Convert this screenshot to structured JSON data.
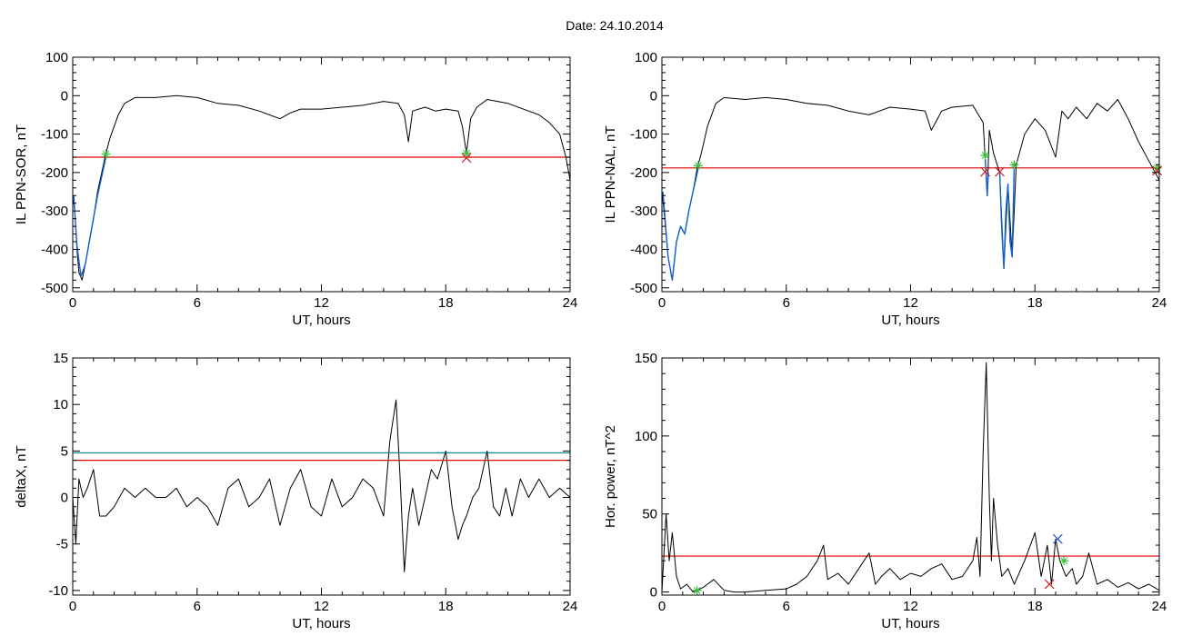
{
  "date_label": "Date:  24.10.2014",
  "colors": {
    "trace": "#000000",
    "threshold_red": "#e00000",
    "threshold_cyan": "#008a9a",
    "phase_blue": "#1560d0",
    "marker_green": "#33bb33",
    "marker_red": "#cc2222",
    "marker_blue": "#2255dd"
  },
  "chart_data": [
    {
      "id": "il_sor",
      "type": "line",
      "xlabel": "UT, hours",
      "ylabel": "IL PPN-SOR, nT",
      "xlim": [
        0,
        24
      ],
      "ylim": [
        -510,
        100
      ],
      "xticks": [
        0,
        6,
        12,
        18,
        24
      ],
      "yticks": [
        100,
        0,
        -100,
        -200,
        -300,
        -400,
        -500
      ],
      "series": [
        {
          "x": [
            0,
            0.1,
            0.2,
            0.3,
            0.45,
            0.6,
            0.8,
            1.0,
            1.2,
            1.4,
            1.6,
            1.8,
            2.0,
            2.2,
            2.5,
            3.0,
            4.0,
            5.0,
            6.0,
            7.0,
            8.0,
            9.0,
            10.0,
            10.5,
            11.0,
            12.0,
            13.0,
            14.0,
            15.0,
            15.7,
            16.0,
            16.2,
            16.4,
            17.0,
            17.5,
            18.0,
            18.6,
            18.8,
            19.0,
            19.2,
            19.5,
            20.0,
            21.0,
            22.0,
            22.5,
            23.0,
            23.5,
            23.8,
            24.0
          ],
          "y": [
            -260,
            -300,
            -400,
            -460,
            -480,
            -440,
            -380,
            -320,
            -250,
            -200,
            -150,
            -110,
            -80,
            -50,
            -20,
            -5,
            -5,
            0,
            -5,
            -20,
            -25,
            -40,
            -60,
            -45,
            -35,
            -35,
            -30,
            -25,
            -15,
            -20,
            -50,
            -120,
            -40,
            -30,
            -40,
            -35,
            -40,
            -80,
            -150,
            -60,
            -30,
            -10,
            -20,
            -40,
            -50,
            -70,
            -100,
            -160,
            -220
          ]
        },
        {
          "x": [
            0.05,
            0.2,
            0.4,
            0.6,
            0.8,
            1.0,
            1.2,
            1.4,
            1.6
          ],
          "y": [
            -260,
            -390,
            -470,
            -440,
            -380,
            -320,
            -260,
            -210,
            -160
          ]
        }
      ],
      "thresholds": [
        -160
      ],
      "markers": [
        {
          "x": 1.6,
          "y": -152,
          "kind": "plus"
        },
        {
          "x": 19.0,
          "y": -150,
          "kind": "plus"
        },
        {
          "x": 19.0,
          "y": -162,
          "kind": "cross"
        }
      ]
    },
    {
      "id": "il_nal",
      "type": "line",
      "xlabel": "UT, hours",
      "ylabel": "IL PPN-NAL, nT",
      "xlim": [
        0,
        24
      ],
      "ylim": [
        -510,
        100
      ],
      "xticks": [
        0,
        6,
        12,
        18,
        24
      ],
      "yticks": [
        100,
        0,
        -100,
        -200,
        -300,
        -400,
        -500
      ],
      "series": [
        {
          "x": [
            0,
            0.1,
            0.3,
            0.5,
            0.7,
            0.9,
            1.1,
            1.3,
            1.5,
            1.7,
            1.9,
            2.2,
            2.6,
            3.0,
            4.0,
            5.0,
            6.0,
            7.0,
            8.0,
            9.0,
            10.0,
            10.5,
            11.0,
            12.0,
            12.7,
            13.0,
            13.5,
            14.0,
            15.0,
            15.5,
            15.7,
            15.8,
            16.0,
            16.3,
            16.5,
            16.7,
            16.9,
            17.1,
            17.5,
            18.0,
            18.5,
            19.0,
            19.3,
            19.6,
            20.0,
            20.5,
            21.0,
            21.5,
            22.0,
            22.5,
            23.0,
            23.5,
            24.0
          ],
          "y": [
            -250,
            -300,
            -420,
            -480,
            -380,
            -340,
            -360,
            -300,
            -250,
            -190,
            -150,
            -80,
            -20,
            -5,
            -10,
            -5,
            -10,
            -20,
            -25,
            -40,
            -50,
            -40,
            -30,
            -35,
            -40,
            -90,
            -40,
            -30,
            -25,
            -70,
            -260,
            -90,
            -150,
            -200,
            -450,
            -230,
            -420,
            -180,
            -100,
            -60,
            -90,
            -160,
            -40,
            -60,
            -30,
            -60,
            -20,
            -40,
            -10,
            -60,
            -120,
            -170,
            -220
          ]
        },
        {
          "x": [
            0.05,
            0.3,
            0.5,
            0.7,
            0.9,
            1.1,
            1.3,
            1.5,
            1.75
          ],
          "y": [
            -250,
            -420,
            -480,
            -380,
            -340,
            -360,
            -300,
            -250,
            -190
          ]
        },
        {
          "x": [
            15.6,
            15.7,
            15.75
          ],
          "y": [
            -160,
            -260,
            -200
          ]
        },
        {
          "x": [
            16.3,
            16.4,
            16.5,
            16.6,
            16.7,
            16.8,
            16.9,
            17.0
          ],
          "y": [
            -200,
            -350,
            -450,
            -300,
            -230,
            -380,
            -420,
            -180
          ]
        }
      ],
      "thresholds": [
        -188
      ],
      "markers": [
        {
          "x": 1.75,
          "y": -182,
          "kind": "plus"
        },
        {
          "x": 15.6,
          "y": -155,
          "kind": "plus"
        },
        {
          "x": 17.0,
          "y": -180,
          "kind": "plus"
        },
        {
          "x": 23.9,
          "y": -188,
          "kind": "plus"
        },
        {
          "x": 15.6,
          "y": -198,
          "kind": "cross"
        },
        {
          "x": 16.3,
          "y": -198,
          "kind": "cross"
        },
        {
          "x": 23.9,
          "y": -195,
          "kind": "cross"
        }
      ]
    },
    {
      "id": "deltax",
      "type": "line",
      "xlabel": "UT, hours",
      "ylabel": "deltaX, nT",
      "xlim": [
        0,
        24
      ],
      "ylim": [
        -10.5,
        15
      ],
      "xticks": [
        0,
        6,
        12,
        18,
        24
      ],
      "yticks": [
        15,
        10,
        5,
        0,
        -5,
        -10
      ],
      "series": [
        {
          "x": [
            0,
            0.15,
            0.3,
            0.5,
            0.7,
            1.0,
            1.3,
            1.6,
            2.0,
            2.5,
            3.0,
            3.5,
            4.0,
            4.5,
            5.0,
            5.5,
            6.0,
            6.5,
            7.0,
            7.5,
            8.0,
            8.5,
            9.0,
            9.5,
            10.0,
            10.5,
            11.0,
            11.5,
            12.0,
            12.5,
            13.0,
            13.5,
            14.0,
            14.5,
            15.0,
            15.3,
            15.6,
            15.8,
            16.0,
            16.2,
            16.4,
            16.7,
            17.0,
            17.3,
            17.6,
            18.0,
            18.3,
            18.6,
            18.8,
            19.0,
            19.3,
            19.6,
            20.0,
            20.3,
            20.6,
            20.9,
            21.2,
            21.6,
            22.0,
            22.5,
            23.0,
            23.5,
            24.0
          ],
          "y": [
            0,
            -5,
            2,
            0,
            1,
            3,
            -2,
            -2,
            -1,
            1,
            0,
            1,
            0,
            0,
            1,
            -1,
            0,
            -1,
            -3,
            1,
            2,
            -1,
            0,
            2,
            -3,
            1,
            3,
            -1,
            -2,
            2,
            -1,
            0,
            2,
            1,
            -2,
            6,
            10.5,
            2,
            -8,
            -2,
            1,
            -3,
            0,
            3,
            2,
            5,
            -1,
            -4.5,
            -3,
            -2,
            0,
            1,
            5,
            -1,
            -2,
            1,
            -2,
            2,
            0,
            2,
            0,
            1,
            0
          ]
        }
      ],
      "thresholds": [
        4,
        4.8
      ]
    },
    {
      "id": "horpower",
      "type": "line",
      "xlabel": "UT, hours",
      "ylabel": "Hor. power, nT^2",
      "xlim": [
        0,
        24
      ],
      "ylim": [
        -2,
        150
      ],
      "xticks": [
        0,
        6,
        12,
        18,
        24
      ],
      "yticks": [
        150,
        100,
        50,
        0
      ],
      "series": [
        {
          "x": [
            0,
            0.1,
            0.2,
            0.35,
            0.5,
            0.7,
            0.9,
            1.2,
            1.5,
            2.0,
            2.5,
            3.0,
            3.5,
            4.0,
            5.0,
            6.0,
            6.5,
            7.0,
            7.5,
            7.8,
            8.0,
            8.5,
            9.0,
            9.5,
            10.0,
            10.3,
            10.6,
            11.0,
            11.5,
            12.0,
            12.5,
            13.0,
            13.5,
            14.0,
            14.5,
            15.0,
            15.2,
            15.35,
            15.5,
            15.65,
            15.8,
            15.9,
            16.0,
            16.2,
            16.4,
            16.7,
            17.0,
            17.5,
            18.0,
            18.3,
            18.6,
            18.8,
            19.0,
            19.2,
            19.5,
            19.8,
            20.0,
            20.3,
            20.6,
            21.0,
            21.5,
            22.0,
            22.5,
            23.0,
            23.5,
            24.0
          ],
          "y": [
            0,
            25,
            50,
            20,
            38,
            10,
            2,
            5,
            0,
            3,
            8,
            1,
            0,
            0,
            1,
            2,
            5,
            10,
            20,
            30,
            8,
            12,
            5,
            15,
            25,
            5,
            10,
            15,
            8,
            12,
            10,
            15,
            18,
            8,
            10,
            20,
            35,
            10,
            90,
            147,
            60,
            20,
            60,
            30,
            10,
            15,
            5,
            20,
            38,
            10,
            30,
            5,
            34,
            20,
            10,
            15,
            5,
            10,
            25,
            5,
            8,
            3,
            6,
            2,
            5,
            1
          ]
        }
      ],
      "thresholds": [
        23
      ],
      "markers": [
        {
          "x": 1.7,
          "y": 1,
          "kind": "plus"
        },
        {
          "x": 19.4,
          "y": 20,
          "kind": "plus"
        },
        {
          "x": 18.7,
          "y": 5,
          "kind": "cross"
        },
        {
          "x": 19.1,
          "y": 34,
          "kind": "cross"
        }
      ]
    }
  ]
}
